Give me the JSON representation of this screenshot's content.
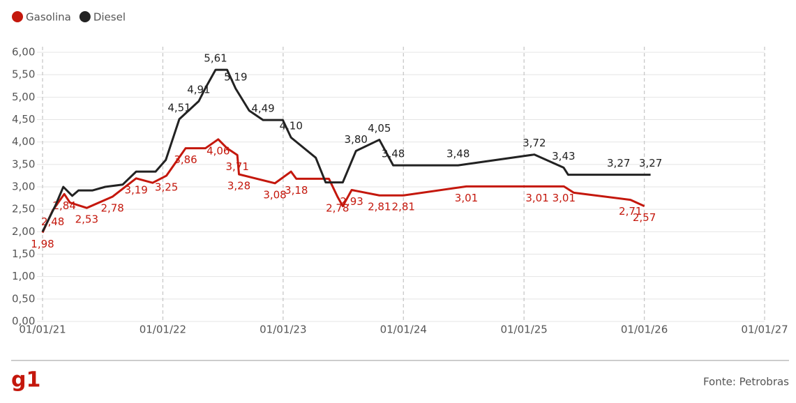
{
  "chart_data": {
    "type": "line",
    "xlim": [
      "2021-01-01",
      "2027-01-01"
    ],
    "xticks": [
      {
        "value": "2021-01-01",
        "label": "01/01/21"
      },
      {
        "value": "2022-01-01",
        "label": "01/01/22"
      },
      {
        "value": "2023-01-01",
        "label": "01/01/23"
      },
      {
        "value": "2024-01-01",
        "label": "01/01/24"
      },
      {
        "value": "2025-01-01",
        "label": "01/01/25"
      },
      {
        "value": "2026-01-01",
        "label": "01/01/26"
      },
      {
        "value": "2027-01-01",
        "label": "01/01/27"
      }
    ],
    "ylim": [
      0,
      6
    ],
    "yticks": [
      {
        "value": 0,
        "label": "0,00"
      },
      {
        "value": 0.5,
        "label": "0,50"
      },
      {
        "value": 1,
        "label": "1,00"
      },
      {
        "value": 1.5,
        "label": "1,50"
      },
      {
        "value": 2,
        "label": "2,00"
      },
      {
        "value": 2.5,
        "label": "2,50"
      },
      {
        "value": 3,
        "label": "3,00"
      },
      {
        "value": 3.5,
        "label": "3,50"
      },
      {
        "value": 4,
        "label": "4,00"
      },
      {
        "value": 4.5,
        "label": "4,50"
      },
      {
        "value": 5,
        "label": "5,00"
      },
      {
        "value": 5.5,
        "label": "5,50"
      },
      {
        "value": 6,
        "label": "6,00"
      }
    ],
    "grid": true,
    "legend": "top-left",
    "brand": "g1",
    "source": "Fonte: Petrobras",
    "series": [
      {
        "name": "Gasolina",
        "color": "#c4170c",
        "x": [
          "2021-01-01",
          "2021-02-01",
          "2021-03-08",
          "2021-03-25",
          "2021-05-15",
          "2021-08-01",
          "2021-10-12",
          "2021-12-01",
          "2022-01-12",
          "2022-03-11",
          "2022-05-10",
          "2022-06-18",
          "2022-07-15",
          "2022-08-15",
          "2022-08-20",
          "2022-12-07",
          "2023-01-25",
          "2023-02-10",
          "2023-05-20",
          "2023-06-15",
          "2023-07-01",
          "2023-07-28",
          "2023-10-20",
          "2024-01-01",
          "2024-07-10",
          "2025-02-10",
          "2025-05-02",
          "2025-06-01",
          "2025-11-20",
          "2026-01-01"
        ],
        "values": [
          1.98,
          2.48,
          2.84,
          2.65,
          2.53,
          2.78,
          3.19,
          3.09,
          3.25,
          3.86,
          3.86,
          4.06,
          3.86,
          3.71,
          3.28,
          3.08,
          3.34,
          3.18,
          3.18,
          2.78,
          2.57,
          2.93,
          2.81,
          2.81,
          3.01,
          3.01,
          3.01,
          2.87,
          2.71,
          2.57
        ],
        "value_labels": [
          "1,98",
          "2,48",
          "2,84",
          null,
          "2,53",
          "2,78",
          "3,19",
          null,
          "3,25",
          "3,86",
          null,
          "4,06",
          null,
          "3,71",
          "3,28",
          "3,08",
          null,
          "3,18",
          null,
          "2,78",
          null,
          "2,93",
          "2,81",
          "2,81",
          "3,01",
          "3,01",
          "3,01",
          null,
          "2,71",
          "2,57"
        ]
      },
      {
        "name": "Diesel",
        "color": "#222222",
        "x": [
          "2021-01-01",
          "2021-02-10",
          "2021-03-05",
          "2021-04-01",
          "2021-04-20",
          "2021-06-01",
          "2021-07-10",
          "2021-09-01",
          "2021-10-12",
          "2021-12-10",
          "2022-01-10",
          "2022-02-20",
          "2022-04-20",
          "2022-05-10",
          "2022-06-10",
          "2022-07-15",
          "2022-08-10",
          "2022-09-20",
          "2022-11-01",
          "2022-12-31",
          "2023-01-25",
          "2023-04-10",
          "2023-05-10",
          "2023-07-01",
          "2023-08-10",
          "2023-10-20",
          "2023-12-01",
          "2024-06-15",
          "2025-02-01",
          "2025-05-01",
          "2025-05-15",
          "2025-10-15",
          "2026-01-20"
        ],
        "values": [
          2.0,
          2.6,
          3.0,
          2.8,
          2.92,
          2.92,
          3.0,
          3.05,
          3.34,
          3.34,
          3.6,
          4.51,
          4.91,
          5.2,
          5.61,
          5.61,
          5.19,
          4.7,
          4.49,
          4.49,
          4.1,
          3.65,
          3.1,
          3.1,
          3.8,
          4.05,
          3.48,
          3.48,
          3.72,
          3.43,
          3.27,
          3.27,
          3.27
        ],
        "value_labels": [
          null,
          null,
          null,
          null,
          null,
          null,
          null,
          null,
          null,
          null,
          null,
          "4,51",
          "4,91",
          null,
          "5,61",
          null,
          "5,19",
          null,
          "4,49",
          null,
          "4,10",
          null,
          null,
          null,
          "3,80",
          "4,05",
          "3,48",
          "3,48",
          "3,72",
          "3,43",
          null,
          "3,27",
          "3,27"
        ]
      }
    ]
  }
}
